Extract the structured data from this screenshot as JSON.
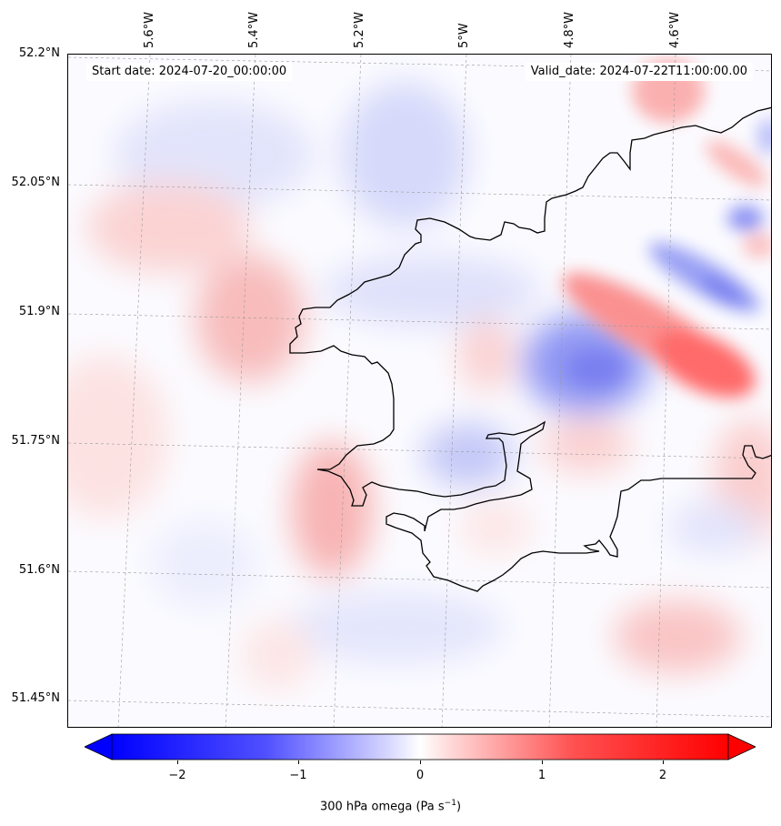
{
  "map": {
    "start_date_label": "Start date: 2024-07-20_00:00:00",
    "valid_date_label": "Valid_date: 2024-07-22T11:00:00.00",
    "lat_labels": [
      "52.2°N",
      "52.05°N",
      "51.9°N",
      "51.75°N",
      "51.6°N",
      "51.45°N"
    ],
    "lon_labels": [
      "5.6°W",
      "5.4°W",
      "5.2°W",
      "5°W",
      "4.8°W",
      "4.6°W"
    ],
    "colorbar": {
      "ticks": [
        "−2",
        "−1",
        "0",
        "1",
        "2"
      ],
      "label_main": "300 hPa omega (Pa s",
      "label_exp": "−1",
      "label_end": ")",
      "min": -2.6,
      "max": 2.6,
      "colors": {
        "negative": "#0000ff",
        "zero": "#ffffff",
        "positive": "#ff0000"
      }
    }
  }
}
